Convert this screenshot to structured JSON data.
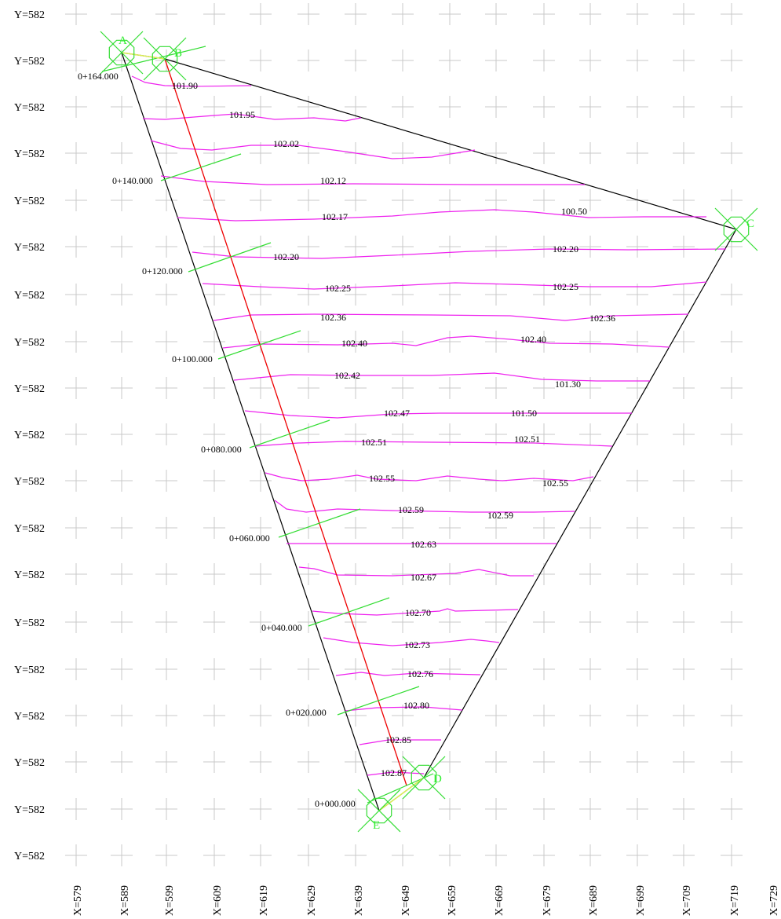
{
  "colors": {
    "grid": "#c8c8c8",
    "boundary": "#000000",
    "contour": "#ee22ee",
    "centerline": "#ee0000",
    "station_tick": "#33dd33",
    "point_marker": "#33dd33",
    "background": "#ffffff"
  },
  "axes": {
    "y_ticks": [
      "Y=582",
      "Y=582",
      "Y=582",
      "Y=582",
      "Y=582",
      "Y=582",
      "Y=582",
      "Y=582",
      "Y=582",
      "Y=582",
      "Y=582",
      "Y=582",
      "Y=582",
      "Y=582",
      "Y=582",
      "Y=582",
      "Y=582",
      "Y=582",
      "Y=582"
    ],
    "x_ticks": [
      "X=579",
      "X=589",
      "X=599",
      "X=609",
      "X=619",
      "X=629",
      "X=639",
      "X=649",
      "X=659",
      "X=669",
      "X=679",
      "X=689",
      "X=699",
      "X=709",
      "X=719",
      "X=729"
    ]
  },
  "points": [
    {
      "name": "A"
    },
    {
      "name": "B"
    },
    {
      "name": "C"
    },
    {
      "name": "D"
    },
    {
      "name": "E"
    }
  ],
  "stations": [
    "0+164.000",
    "0+140.000",
    "0+120.000",
    "0+100.000",
    "0+080.000",
    "0+060.000",
    "0+040.000",
    "0+020.000",
    "0+000.000"
  ],
  "contour_labels": [
    "101.90",
    "101.95",
    "102.02",
    "102.12",
    "102.17",
    "100.50",
    "102.20",
    "102.20",
    "102.25",
    "102.25",
    "102.36",
    "102.36",
    "102.40",
    "102.40",
    "102.42",
    "101.30",
    "102.47",
    "101.50",
    "102.51",
    "102.51",
    "102.55",
    "102.55",
    "102.59",
    "102.59",
    "102.63",
    "102.67",
    "102.70",
    "102.73",
    "102.76",
    "102.80",
    "102.85",
    "102.87"
  ]
}
